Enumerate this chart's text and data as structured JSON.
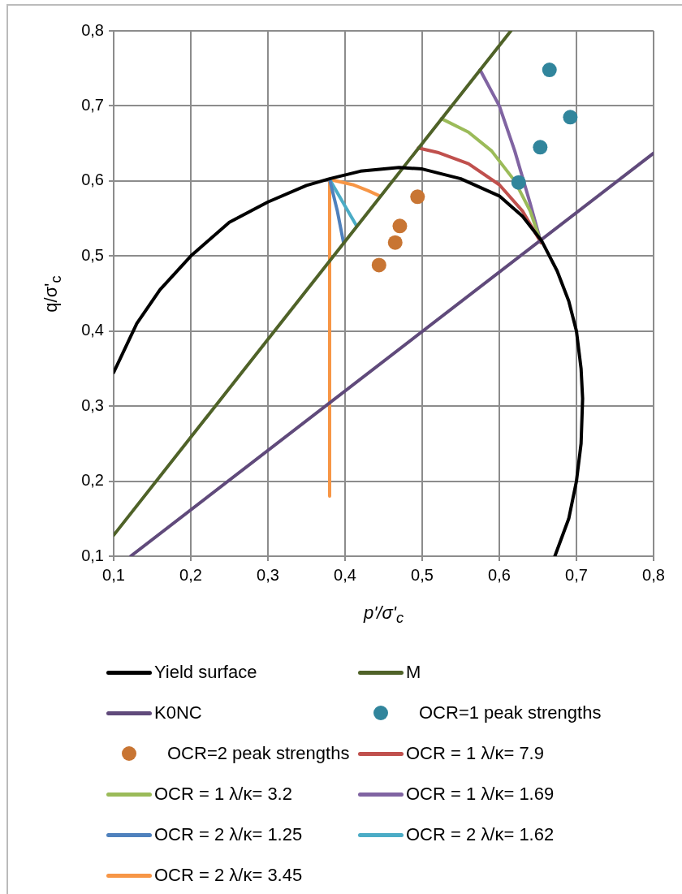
{
  "chart_data": {
    "type": "line",
    "xlabel": "p'/σ'$_{c}$",
    "ylabel": "q/σ'$_{c}$",
    "xlim": [
      0.1,
      0.8
    ],
    "ylim": [
      0.1,
      0.8
    ],
    "xticks": [
      {
        "value": 0.1,
        "label": "0,1"
      },
      {
        "value": 0.2,
        "label": "0,2"
      },
      {
        "value": 0.3,
        "label": "0,3"
      },
      {
        "value": 0.4,
        "label": "0,4"
      },
      {
        "value": 0.5,
        "label": "0,5"
      },
      {
        "value": 0.6,
        "label": "0,6"
      },
      {
        "value": 0.7,
        "label": "0,7"
      },
      {
        "value": 0.8,
        "label": "0,8"
      }
    ],
    "yticks": [
      {
        "value": 0.1,
        "label": "0,1"
      },
      {
        "value": 0.2,
        "label": "0,2"
      },
      {
        "value": 0.3,
        "label": "0,3"
      },
      {
        "value": 0.4,
        "label": "0,4"
      },
      {
        "value": 0.5,
        "label": "0,5"
      },
      {
        "value": 0.6,
        "label": "0,6"
      },
      {
        "value": 0.7,
        "label": "0,7"
      },
      {
        "value": 0.8,
        "label": "0,8"
      }
    ],
    "grid": true,
    "legend": "bottom",
    "marker": "none",
    "line_style": "solid",
    "series": [
      {
        "name": "Yield surface",
        "color": "#000000",
        "x": [
          0.1,
          0.13,
          0.16,
          0.2,
          0.25,
          0.3,
          0.35,
          0.38,
          0.42,
          0.47,
          0.5,
          0.55,
          0.6,
          0.63,
          0.655,
          0.675,
          0.69,
          0.7,
          0.706,
          0.708,
          0.706,
          0.7,
          0.69,
          0.672
        ],
        "values": [
          0.345,
          0.41,
          0.455,
          0.5,
          0.545,
          0.572,
          0.594,
          0.603,
          0.613,
          0.618,
          0.616,
          0.603,
          0.58,
          0.553,
          0.52,
          0.48,
          0.44,
          0.4,
          0.35,
          0.31,
          0.25,
          0.2,
          0.15,
          0.1
        ]
      },
      {
        "name": "M",
        "color": "#4f6228",
        "x": [
          0.1,
          0.615
        ],
        "values": [
          0.128,
          0.8
        ]
      },
      {
        "name": "K0NC",
        "color": "#604a7b",
        "x": [
          0.122,
          0.8
        ],
        "values": [
          0.1,
          0.637
        ]
      },
      {
        "name": "OCR=1 peak strengths",
        "type": "scatter",
        "marker": "circle",
        "color": "#31859c",
        "x": [
          0.665,
          0.692,
          0.653,
          0.625
        ],
        "values": [
          0.748,
          0.685,
          0.645,
          0.598
        ]
      },
      {
        "name": "OCR=2 peak strengths",
        "type": "scatter",
        "marker": "circle",
        "color": "#c87533",
        "x": [
          0.444,
          0.465,
          0.471,
          0.494
        ],
        "values": [
          0.488,
          0.518,
          0.54,
          0.579
        ]
      },
      {
        "name": "OCR = 1 λ/κ= 7.9",
        "color": "#c0504d",
        "x": [
          0.654,
          0.63,
          0.6,
          0.56,
          0.52,
          0.495
        ],
        "values": [
          0.518,
          0.56,
          0.595,
          0.623,
          0.638,
          0.644
        ]
      },
      {
        "name": "OCR = 1 λ/κ= 3.2",
        "color": "#9bbb59",
        "x": [
          0.654,
          0.64,
          0.62,
          0.59,
          0.56,
          0.525
        ],
        "values": [
          0.518,
          0.56,
          0.6,
          0.64,
          0.665,
          0.683
        ]
      },
      {
        "name": "OCR = 1 λ/κ= 1.69",
        "color": "#8064a2",
        "x": [
          0.654,
          0.64,
          0.62,
          0.6,
          0.575
        ],
        "values": [
          0.518,
          0.57,
          0.64,
          0.7,
          0.748
        ]
      },
      {
        "name": "OCR = 2 λ/κ= 1.25",
        "color": "#4f81bd",
        "x": [
          0.38,
          0.39,
          0.398
        ],
        "values": [
          0.602,
          0.56,
          0.518
        ]
      },
      {
        "name": "OCR = 2 λ/κ= 1.62",
        "color": "#4bacc6",
        "x": [
          0.38,
          0.398,
          0.415
        ],
        "values": [
          0.602,
          0.57,
          0.54
        ]
      },
      {
        "name": "OCR = 2 λ/κ= 3.45",
        "color": "#f79646",
        "x": [
          0.38,
          0.38,
          0.41,
          0.43,
          0.445
        ],
        "values": [
          0.18,
          0.602,
          0.595,
          0.587,
          0.58
        ]
      }
    ]
  }
}
